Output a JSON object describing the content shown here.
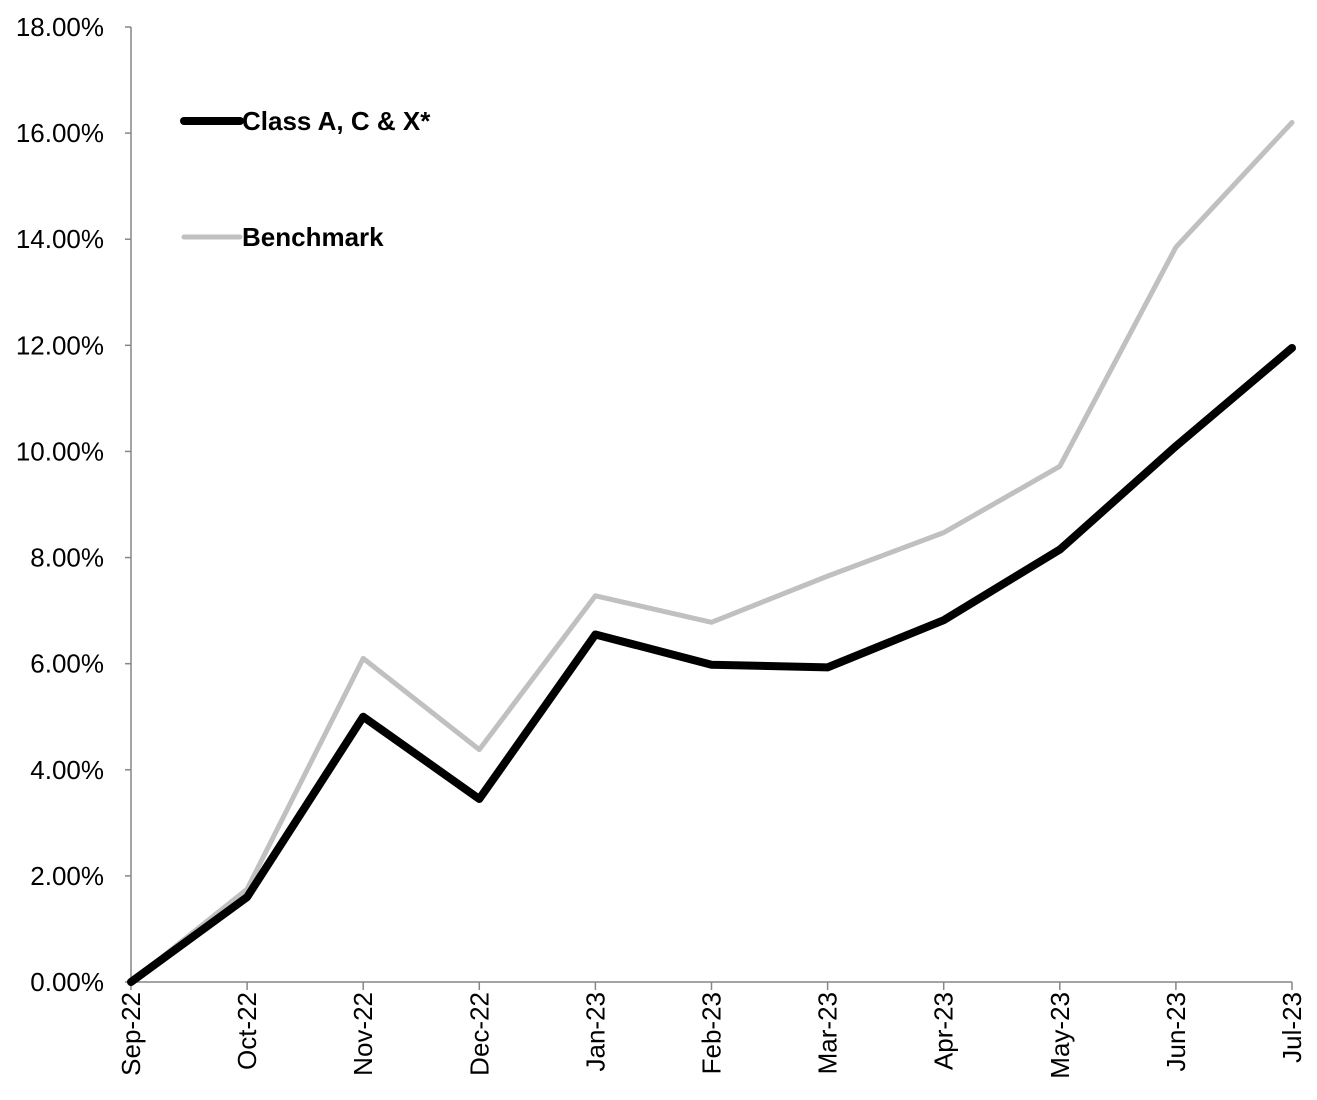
{
  "chart_data": {
    "type": "line",
    "title": "",
    "xlabel": "",
    "ylabel": "",
    "categories": [
      "Sep-22",
      "Oct-22",
      "Nov-22",
      "Dec-22",
      "Jan-23",
      "Feb-23",
      "Mar-23",
      "Apr-23",
      "May-23",
      "Jun-23",
      "Jul-23"
    ],
    "y_ticks": [
      "0.00%",
      "2.00%",
      "4.00%",
      "6.00%",
      "8.00%",
      "10.00%",
      "12.00%",
      "14.00%",
      "16.00%",
      "18.00%"
    ],
    "ylim": [
      0,
      18
    ],
    "grid": false,
    "legend_position": "top-left",
    "series": [
      {
        "name": "Class A, C & X*",
        "color": "#000000",
        "values": [
          0.0,
          1.6,
          5.0,
          3.45,
          6.55,
          5.98,
          5.93,
          6.82,
          8.15,
          10.1,
          11.95
        ]
      },
      {
        "name": "Benchmark",
        "color": "#c0c0c0",
        "values": [
          0.0,
          1.75,
          6.1,
          4.38,
          7.28,
          6.78,
          7.65,
          8.47,
          9.72,
          13.85,
          16.2
        ]
      }
    ]
  }
}
